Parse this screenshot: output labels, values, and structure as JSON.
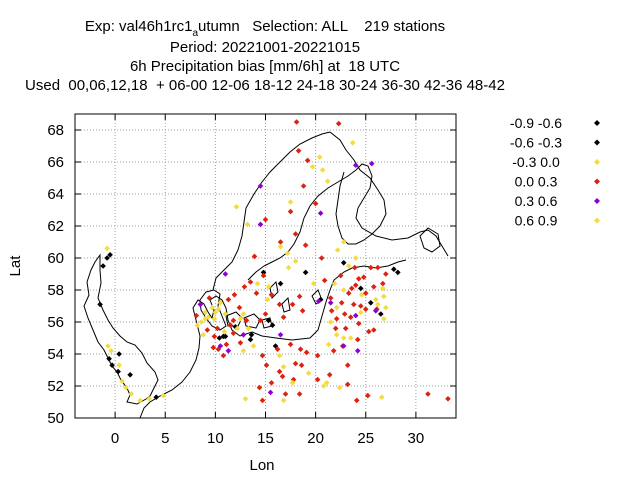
{
  "title": {
    "line1_a": "Exp: val46h1rc1",
    "line1_sub": "a",
    "line1_b": "utumn   Selection: ALL    219 stations",
    "line2": "Period: 20221001-20221015",
    "line3": "6h Precipitation bias [mm/6h] at  18 UTC",
    "line4": "Used  00,06,12,18  + 06-00 12-06 18-12 24-18 30-24 36-30 42-36 48-42"
  },
  "chart_data": {
    "type": "scatter",
    "xlabel": "Lon",
    "ylabel": "Lat",
    "xlim": [
      -4,
      34
    ],
    "ylim": [
      50,
      69
    ],
    "xticks": [
      "0",
      "5",
      "10",
      "15",
      "20",
      "25",
      "30"
    ],
    "yticks": [
      "50",
      "52",
      "54",
      "56",
      "58",
      "60",
      "62",
      "64",
      "66",
      "68"
    ],
    "grid": true,
    "legend_position": "right",
    "colors": {
      "black": "#000000",
      "red": "#dd2211",
      "yellow": "#f2dc40",
      "purple": "#8c00d6"
    },
    "series": [
      {
        "name": "-0.9 -0.6",
        "color": "#000000",
        "points": [
          [
            -1.2,
            59.5
          ],
          [
            -0.8,
            60
          ],
          [
            -1.5,
            57.1
          ],
          [
            -0.6,
            53.7
          ],
          [
            -0.3,
            53.3
          ],
          [
            0.3,
            52.9
          ],
          [
            1.5,
            52.7
          ],
          [
            4.1,
            51.3
          ],
          [
            10.4,
            55
          ],
          [
            10.8,
            55.1
          ],
          [
            13.5,
            54.9
          ],
          [
            15.3,
            56.1
          ],
          [
            15.7,
            55.8
          ],
          [
            16,
            54.5
          ],
          [
            14.8,
            59.1
          ],
          [
            16.5,
            58.4
          ],
          [
            22.8,
            59.7
          ],
          [
            24.5,
            58.1
          ],
          [
            26.5,
            56.5
          ],
          [
            27.8,
            59.3
          ],
          [
            19,
            59.1
          ]
        ]
      },
      {
        "name": "-0.6 -0.3",
        "color": "#000000",
        "points": [
          [
            -0.5,
            60.2
          ],
          [
            0.4,
            54
          ],
          [
            11,
            55.1
          ],
          [
            12,
            55.7
          ],
          [
            13.6,
            55.2
          ],
          [
            20.5,
            57.4
          ],
          [
            25.5,
            57.2
          ],
          [
            28.2,
            59.1
          ]
        ]
      },
      {
        "name": "-0.3 0.0",
        "color": "#f2dc40",
        "points": [
          [
            -0.8,
            60.6
          ],
          [
            -0.7,
            54.5
          ],
          [
            -0.4,
            54.2
          ],
          [
            0.4,
            53.3
          ],
          [
            0.7,
            52.3
          ],
          [
            1.1,
            51.9
          ],
          [
            1.6,
            51.5
          ],
          [
            2.5,
            51.1
          ],
          [
            3.4,
            51.2
          ],
          [
            4.8,
            51.4
          ],
          [
            8.6,
            56
          ],
          [
            9,
            56.6
          ],
          [
            9.3,
            56.3
          ],
          [
            9.7,
            56.9
          ],
          [
            10,
            56.6
          ],
          [
            10.5,
            57.2
          ],
          [
            11,
            56.5
          ],
          [
            12.2,
            55.6
          ],
          [
            12.5,
            56.2
          ],
          [
            12.8,
            56.5
          ],
          [
            13.3,
            55.6
          ],
          [
            12.1,
            63.2
          ],
          [
            13.2,
            62.1
          ],
          [
            14.2,
            58.4
          ],
          [
            15.2,
            57.4
          ],
          [
            17.2,
            60.3
          ],
          [
            18,
            59.8
          ],
          [
            17.5,
            63.5
          ],
          [
            19.7,
            65.7
          ],
          [
            20.4,
            66.3
          ],
          [
            20.7,
            65.5
          ],
          [
            21.2,
            64.8
          ],
          [
            22.2,
            60.5
          ],
          [
            22.8,
            61
          ],
          [
            23.3,
            59.5
          ],
          [
            21.9,
            58.4
          ],
          [
            21.5,
            56
          ],
          [
            22.1,
            55.2
          ],
          [
            21.3,
            54.6
          ],
          [
            23.5,
            55
          ],
          [
            24.5,
            56.6
          ],
          [
            26.2,
            57.1
          ],
          [
            26.8,
            57.6
          ],
          [
            26.8,
            56.2
          ],
          [
            23.7,
            67.2
          ],
          [
            26.6,
            51.3
          ],
          [
            16.4,
            53.9
          ],
          [
            19.3,
            52.8
          ],
          [
            21.1,
            52.2
          ],
          [
            22.4,
            51.9
          ],
          [
            16.8,
            53.2
          ],
          [
            16.8,
            51.1
          ],
          [
            12.8,
            54.2
          ],
          [
            8.8,
            55.2
          ],
          [
            13.8,
            54.5
          ]
        ]
      },
      {
        "name": "0.0 0.3",
        "color": "#dd2211",
        "points": [
          [
            18.1,
            68.5
          ],
          [
            22.3,
            68.4
          ],
          [
            18.3,
            66.7
          ],
          [
            19.2,
            66.1
          ],
          [
            18.8,
            64.5
          ],
          [
            20,
            63.4
          ],
          [
            17.5,
            62.9
          ],
          [
            15,
            62.4
          ],
          [
            13.9,
            60.1
          ],
          [
            16.5,
            61
          ],
          [
            18,
            61.5
          ],
          [
            19,
            60.8
          ],
          [
            20.6,
            60
          ],
          [
            20.9,
            58.6
          ],
          [
            22.5,
            58.9
          ],
          [
            23.9,
            59.4
          ],
          [
            25.5,
            59.4
          ],
          [
            26.2,
            59.4
          ],
          [
            27,
            59
          ],
          [
            24,
            58.3
          ],
          [
            23.3,
            57.8
          ],
          [
            22.6,
            57.2
          ],
          [
            25.8,
            58.2
          ],
          [
            26.7,
            58.4
          ],
          [
            22.9,
            56.5
          ],
          [
            23.5,
            56.3
          ],
          [
            24.3,
            55.9
          ],
          [
            25.3,
            55.4
          ],
          [
            25.8,
            55.5
          ],
          [
            24.2,
            54.9
          ],
          [
            25,
            56.8
          ],
          [
            24.8,
            58.8
          ],
          [
            26.1,
            56.8
          ],
          [
            22.1,
            56.2
          ],
          [
            21.6,
            56.7
          ],
          [
            22,
            55.6
          ],
          [
            23,
            55.6
          ],
          [
            23.8,
            57.1
          ],
          [
            24.5,
            57
          ],
          [
            25,
            57.8
          ],
          [
            21.5,
            57.5
          ],
          [
            24.3,
            58.7
          ],
          [
            23.6,
            58.1
          ],
          [
            22.7,
            54.5
          ],
          [
            21.8,
            54.2
          ],
          [
            23.2,
            53.3
          ],
          [
            20.2,
            53.9
          ],
          [
            18.5,
            54.3
          ],
          [
            17.5,
            54.6
          ],
          [
            16.2,
            54.3
          ],
          [
            19.1,
            54.1
          ],
          [
            18.6,
            53.3
          ],
          [
            18,
            53.4
          ],
          [
            16.7,
            52.6
          ],
          [
            17.8,
            52.4
          ],
          [
            20.2,
            52.4
          ],
          [
            21.4,
            52.7
          ],
          [
            23.2,
            52.1
          ],
          [
            24.1,
            51.1
          ],
          [
            25.2,
            51.4
          ],
          [
            18.4,
            51.5
          ],
          [
            17,
            51.5
          ],
          [
            15.6,
            52.2
          ],
          [
            15.1,
            53.3
          ],
          [
            16.4,
            52.9
          ],
          [
            14.7,
            51.1
          ],
          [
            14.4,
            51.9
          ],
          [
            11.8,
            55.3
          ],
          [
            10.3,
            54.3
          ],
          [
            10.8,
            53.9
          ],
          [
            11.1,
            54.6
          ],
          [
            10.2,
            55.6
          ],
          [
            11.5,
            55.8
          ],
          [
            11.8,
            56.1
          ],
          [
            9.9,
            55.1
          ],
          [
            12.5,
            54.7
          ],
          [
            9.8,
            54.4
          ],
          [
            13.1,
            56.1
          ],
          [
            14.5,
            56.1
          ],
          [
            15,
            56.5
          ],
          [
            15.6,
            57.7
          ],
          [
            16.4,
            57.1
          ],
          [
            17.7,
            57.1
          ],
          [
            18.4,
            57.6
          ],
          [
            14.1,
            57.8
          ],
          [
            12.9,
            58.2
          ],
          [
            13.5,
            58.5
          ],
          [
            11.9,
            57.7
          ],
          [
            16.8,
            56.3
          ],
          [
            31.2,
            51.5
          ],
          [
            33.2,
            51.2
          ],
          [
            9.4,
            57.5
          ],
          [
            8.1,
            56.4
          ],
          [
            9.2,
            55.5
          ],
          [
            18.7,
            56.7
          ],
          [
            14.7,
            53.9
          ],
          [
            12.4,
            56.9
          ],
          [
            11.3,
            57.4
          ],
          [
            14.8,
            58.9
          ]
        ]
      },
      {
        "name": "0.3 0.6",
        "color": "#8c00d6",
        "points": [
          [
            14.5,
            64.5
          ],
          [
            14.5,
            62.1
          ],
          [
            21.5,
            57.2
          ],
          [
            24,
            56.4
          ],
          [
            26,
            56.7
          ],
          [
            22.8,
            54.5
          ],
          [
            11,
            59
          ],
          [
            8.5,
            57.1
          ],
          [
            10.5,
            54.5
          ],
          [
            11.3,
            54.2
          ],
          [
            16.5,
            55.2
          ],
          [
            12.8,
            55.2
          ],
          [
            15.5,
            51.6
          ],
          [
            20.5,
            62.8
          ],
          [
            24,
            65.8
          ],
          [
            24.2,
            54.2
          ],
          [
            20.3,
            57.3
          ],
          [
            25.6,
            65.9
          ]
        ]
      },
      {
        "name": "0.6 0.9",
        "color": "#f2dc40",
        "points": [
          [
            9,
            56.2
          ],
          [
            9.9,
            56.2
          ],
          [
            10.3,
            56.8
          ],
          [
            10.9,
            55.4
          ],
          [
            8.2,
            55.8
          ],
          [
            16.5,
            60.7
          ],
          [
            19.8,
            58.4
          ],
          [
            17.3,
            59.4
          ],
          [
            24,
            60
          ],
          [
            22.1,
            56.9
          ],
          [
            22.8,
            55
          ],
          [
            22.8,
            58
          ],
          [
            26.7,
            58.1
          ],
          [
            27,
            56.9
          ],
          [
            26,
            57.4
          ],
          [
            24.6,
            57.7
          ],
          [
            20.8,
            52
          ],
          [
            17.7,
            52.2
          ],
          [
            13,
            51.2
          ],
          [
            15.3,
            58.2
          ]
        ]
      }
    ]
  }
}
